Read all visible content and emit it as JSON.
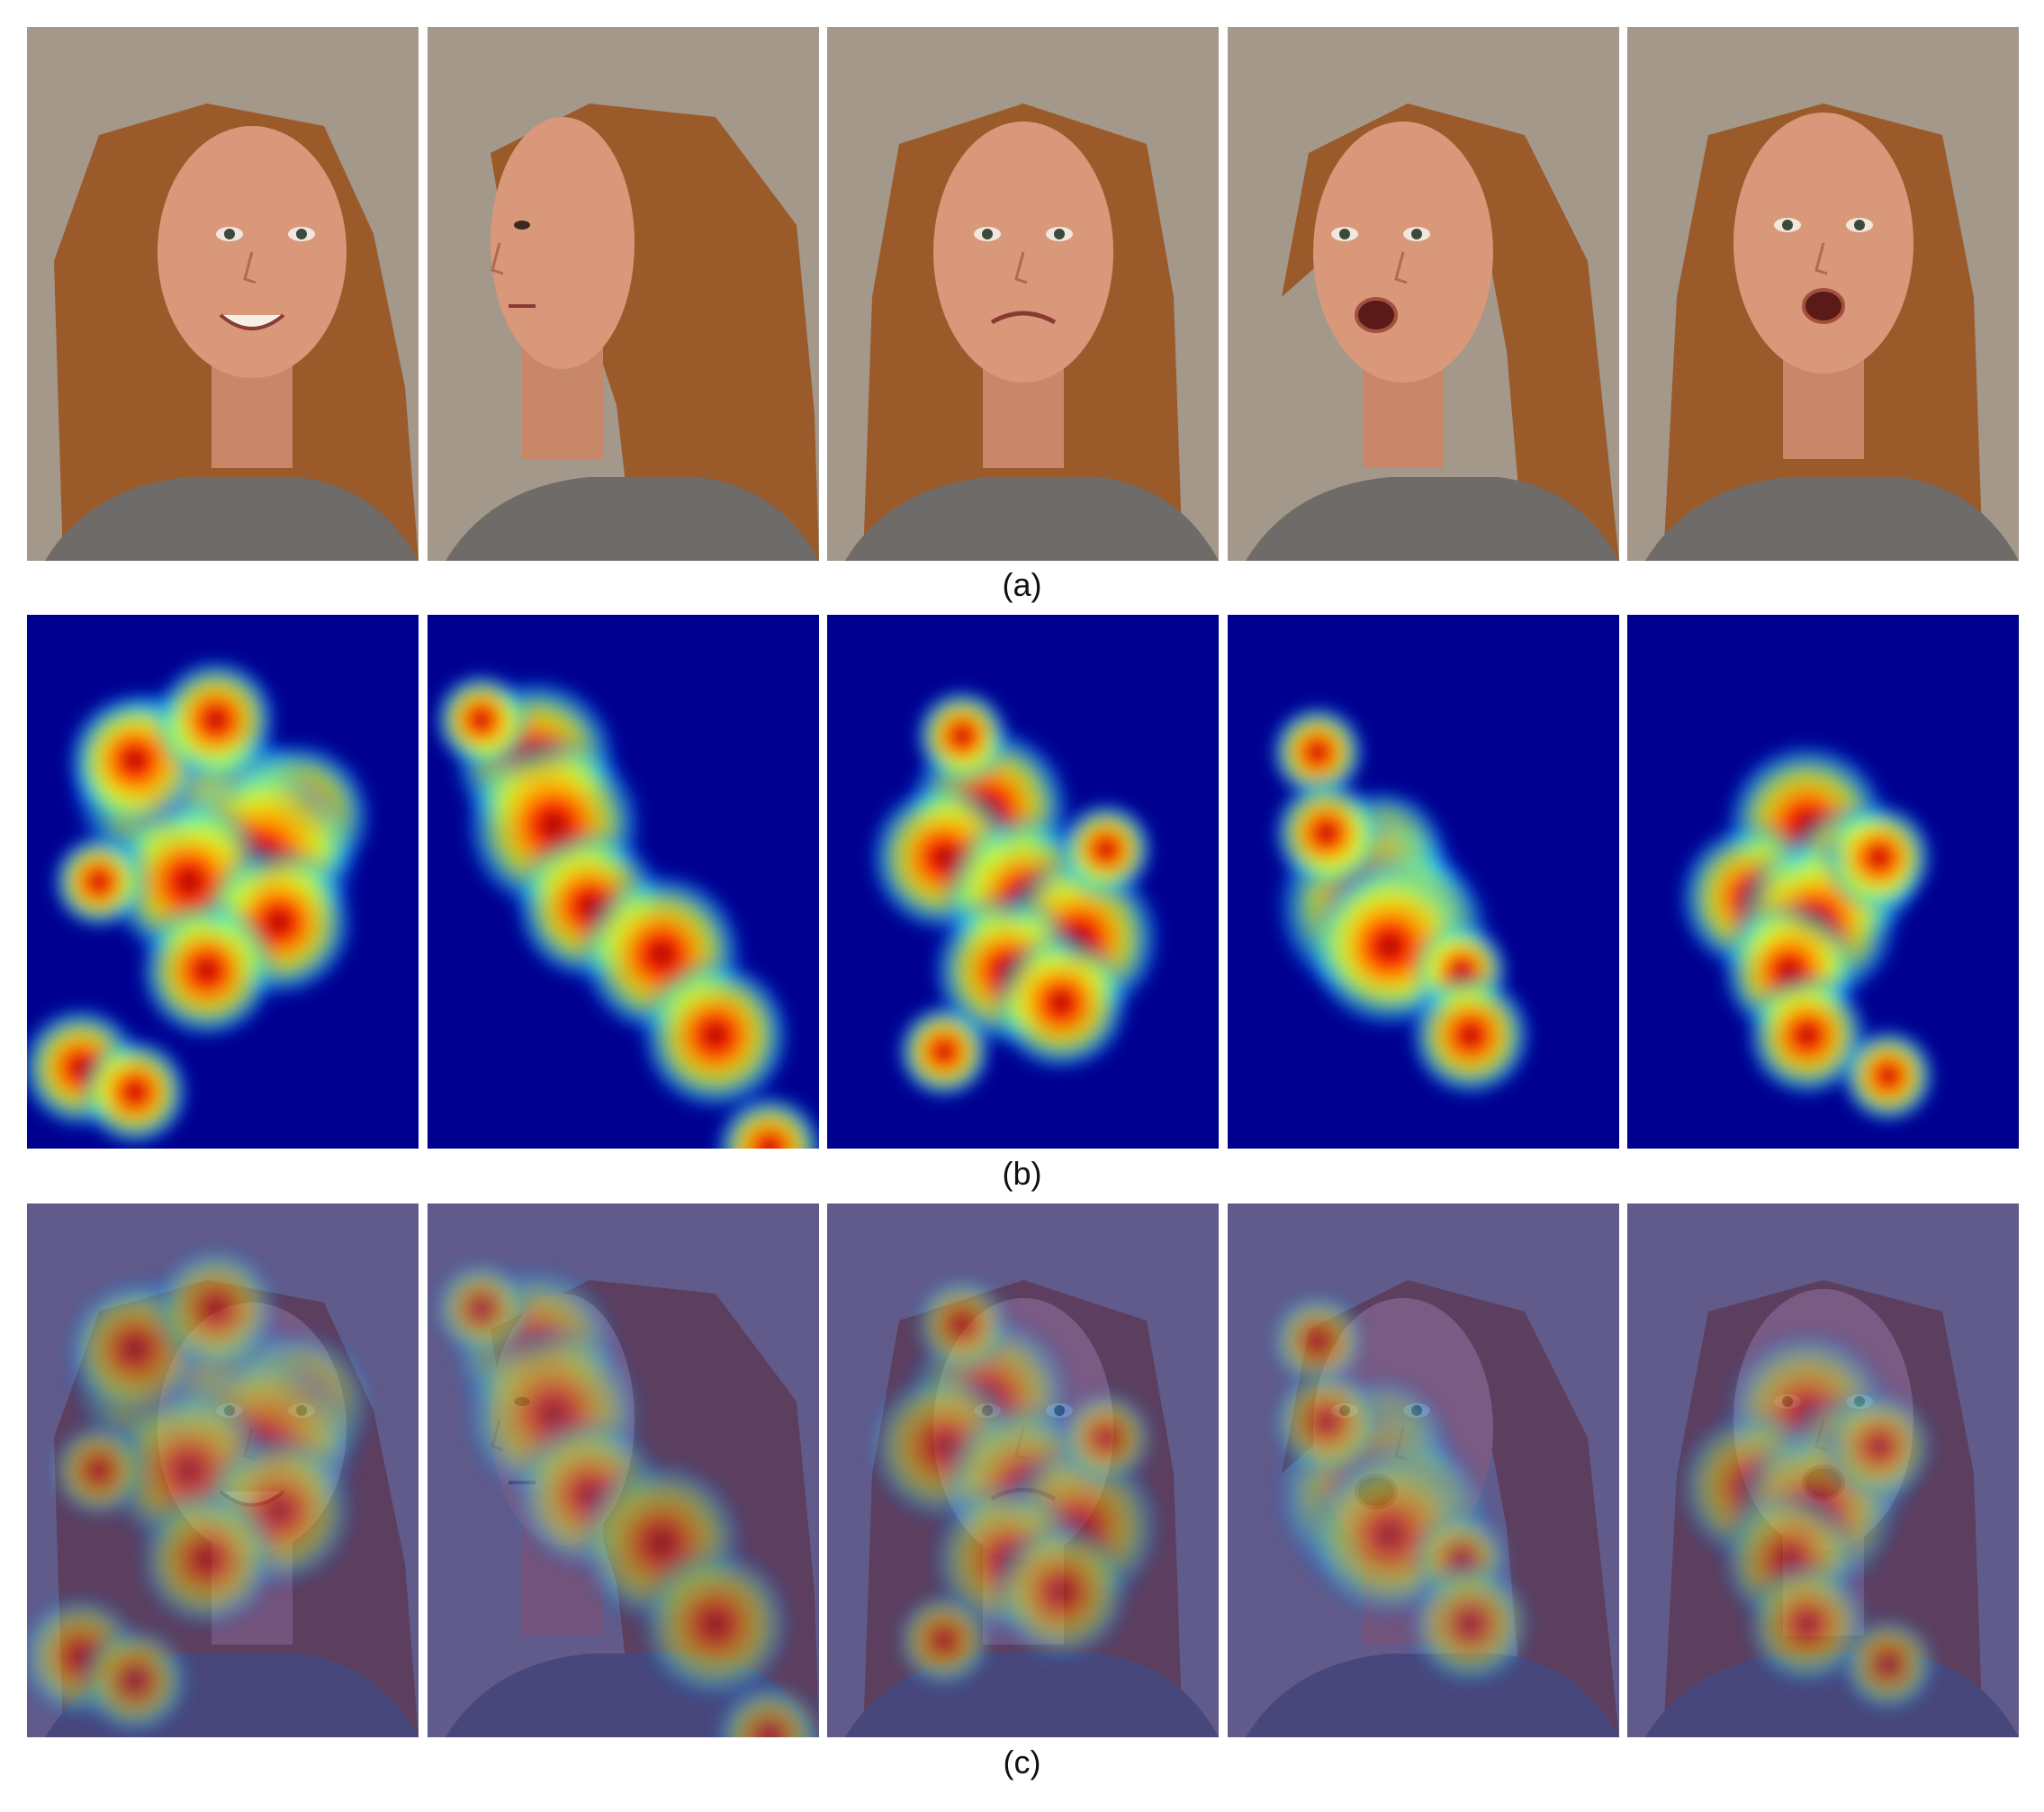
{
  "figure": {
    "captions": {
      "a": "(a)",
      "b": "(b)",
      "c": "(c)"
    },
    "rows": [
      {
        "id": "a",
        "kind": "photograph",
        "panels": [
          "face-happy-left-profile",
          "face-neutral-left-profile",
          "face-sad-frontal",
          "face-surprised-right-three-quarter",
          "face-surprised-frontal"
        ]
      },
      {
        "id": "b",
        "kind": "saliency-heatmap",
        "panels": [
          "heatmap-1",
          "heatmap-2",
          "heatmap-3",
          "heatmap-4",
          "heatmap-5"
        ]
      },
      {
        "id": "c",
        "kind": "heatmap-overlay",
        "panels": [
          "overlay-1",
          "overlay-2",
          "overlay-3",
          "overlay-4",
          "overlay-5"
        ]
      }
    ],
    "colors": {
      "background_photo": "#a3988a",
      "hair": "#9a5a2a",
      "skin": "#d9987a",
      "shirt": "#6e6b69",
      "heatmap_low": "#00008f",
      "heatmap_high": "#8b0000"
    }
  }
}
